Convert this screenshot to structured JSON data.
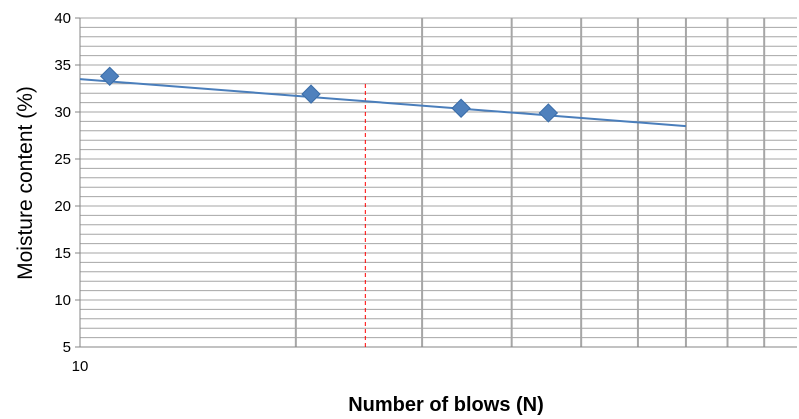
{
  "chart_data": {
    "type": "scatter",
    "title": "",
    "xlabel": "Number of blows (N)",
    "ylabel": "Moisture content (%)",
    "x_scale": "log",
    "xlim": [
      10,
      100
    ],
    "ylim": [
      5,
      40
    ],
    "x_tick_labels": [
      "10"
    ],
    "y_ticks": [
      5,
      10,
      15,
      20,
      25,
      30,
      35,
      40
    ],
    "grid": true,
    "legend": "none",
    "series": [
      {
        "marker": "diamond",
        "color": "#4f81bd",
        "points": [
          {
            "x": 11,
            "y": 33.8
          },
          {
            "x": 21,
            "y": 31.9
          },
          {
            "x": 34,
            "y": 30.4
          },
          {
            "x": 45,
            "y": 29.9
          }
        ]
      }
    ],
    "trendline": {
      "type": "linear",
      "x_from": 10,
      "x_to": 70,
      "y_from": 33.5,
      "y_to": 28.5,
      "color": "#4a7ebb"
    },
    "reference_line": {
      "x": 25,
      "y_from": 5,
      "y_to": 33,
      "color": "#ff0000",
      "style": "dashed"
    },
    "colors": {
      "plot_background": "#ffffff",
      "major_grid": "#a6a6a6",
      "minor_grid": "#a6a6a6"
    }
  }
}
